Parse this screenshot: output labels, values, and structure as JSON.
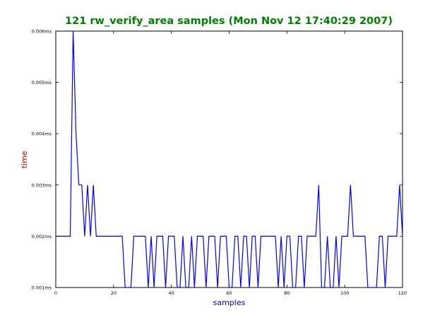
{
  "chart_data": {
    "type": "line",
    "title": "121 rw_verify_area samples (Mon Nov 12 17:40:29 2007)",
    "xlabel": "samples",
    "ylabel": "time",
    "xlim": [
      0,
      120
    ],
    "ylim": [
      0.001,
      0.006
    ],
    "xticks": [
      0,
      20,
      40,
      60,
      80,
      100,
      120
    ],
    "xtick_labels": [
      "0",
      "20",
      "40",
      "60",
      "80",
      "100",
      "120"
    ],
    "yticks": [
      0.001,
      0.002,
      0.003,
      0.004,
      0.005,
      0.006
    ],
    "ytick_labels": [
      "0.001ms",
      "0.002ms",
      "0.003ms",
      "0.004ms",
      "0.005ms",
      "0.006ms"
    ],
    "grid": false,
    "line_color": "#0000ff",
    "title_color": "#008000",
    "xlabel_color": "#0000cc",
    "ylabel_color": "#cc0000",
    "series": [
      {
        "x": [
          0,
          1,
          2,
          3,
          4,
          5,
          6,
          7,
          8,
          9,
          10,
          11,
          12,
          13,
          14,
          15,
          16,
          17,
          18,
          19,
          20,
          21,
          22,
          23,
          24,
          25,
          26,
          27,
          28,
          29,
          30,
          31,
          32,
          33,
          34,
          35,
          36,
          37,
          38,
          39,
          40,
          41,
          42,
          43,
          44,
          45,
          46,
          47,
          48,
          49,
          50,
          51,
          52,
          53,
          54,
          55,
          56,
          57,
          58,
          59,
          60,
          61,
          62,
          63,
          64,
          65,
          66,
          67,
          68,
          69,
          70,
          71,
          72,
          73,
          74,
          75,
          76,
          77,
          78,
          79,
          80,
          81,
          82,
          83,
          84,
          85,
          86,
          87,
          88,
          89,
          90,
          91,
          92,
          93,
          94,
          95,
          96,
          97,
          98,
          99,
          100,
          101,
          102,
          103,
          104,
          105,
          106,
          107,
          108,
          109,
          110,
          111,
          112,
          113,
          114,
          115,
          116,
          117,
          118,
          119,
          120
        ],
        "values": [
          0.002,
          0.002,
          0.002,
          0.002,
          0.002,
          0.002,
          0.006,
          0.004,
          0.003,
          0.003,
          0.002,
          0.003,
          0.002,
          0.003,
          0.002,
          0.002,
          0.002,
          0.002,
          0.002,
          0.002,
          0.002,
          0.002,
          0.002,
          0.002,
          0.001,
          0.001,
          0.001,
          0.002,
          0.002,
          0.002,
          0.002,
          0.002,
          0.001,
          0.002,
          0.001,
          0.002,
          0.002,
          0.002,
          0.001,
          0.002,
          0.002,
          0.002,
          0.001,
          0.001,
          0.002,
          0.001,
          0.001,
          0.002,
          0.001,
          0.002,
          0.002,
          0.002,
          0.001,
          0.002,
          0.002,
          0.002,
          0.001,
          0.002,
          0.002,
          0.002,
          0.001,
          0.001,
          0.002,
          0.002,
          0.001,
          0.002,
          0.002,
          0.001,
          0.002,
          0.002,
          0.001,
          0.002,
          0.002,
          0.002,
          0.002,
          0.002,
          0.002,
          0.001,
          0.002,
          0.001,
          0.002,
          0.002,
          0.001,
          0.001,
          0.002,
          0.002,
          0.001,
          0.002,
          0.002,
          0.002,
          0.002,
          0.003,
          0.001,
          0.001,
          0.002,
          0.001,
          0.001,
          0.002,
          0.001,
          0.002,
          0.002,
          0.002,
          0.003,
          0.002,
          0.002,
          0.002,
          0.002,
          0.002,
          0.001,
          0.001,
          0.001,
          0.001,
          0.002,
          0.002,
          0.001,
          0.002,
          0.002,
          0.002,
          0.002,
          0.003,
          0.002
        ]
      }
    ]
  }
}
